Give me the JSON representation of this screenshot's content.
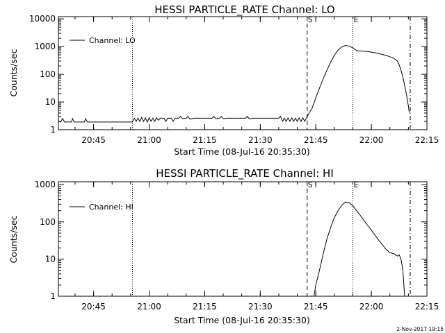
{
  "footer_timestamp": "2-Nov-2017 19:15",
  "chart_data": [
    {
      "type": "line",
      "title": "HESSI PARTICLE_RATE Channel: LO",
      "xlabel": "Start Time (08-Jul-16 20:35:30)",
      "ylabel": "Counts/sec",
      "y_scale": "log",
      "ylim": [
        1,
        12000
      ],
      "xlim": [
        "20:35:30",
        "22:15:00"
      ],
      "x_ticks": [
        "20:45",
        "21:00",
        "21:15",
        "21:30",
        "21:45",
        "22:00",
        "22:15"
      ],
      "y_ticks": [
        "1",
        "10",
        "100",
        "1000",
        "10000"
      ],
      "markers": {
        "start_label": "S",
        "end_label": "E"
      },
      "vlines": {
        "dotted": [
          "20:55:30",
          "21:55:00"
        ],
        "dashed": "21:42:40",
        "dashdot": "22:10:30"
      },
      "legend": {
        "label": "Channel: LO",
        "position": "top-left"
      },
      "series": [
        {
          "name": "Channel: LO",
          "points": [
            [
              "20:35:30",
              2.0
            ],
            [
              "20:36:00",
              1.9
            ],
            [
              "20:36:40",
              2.5
            ],
            [
              "20:37:10",
              1.9
            ],
            [
              "20:39:00",
              1.9
            ],
            [
              "20:39:20",
              2.5
            ],
            [
              "20:39:45",
              1.9
            ],
            [
              "20:42:30",
              1.9
            ],
            [
              "20:42:50",
              2.5
            ],
            [
              "20:43:20",
              1.9
            ],
            [
              "20:55:30",
              1.9
            ],
            [
              "20:56:00",
              2.6
            ],
            [
              "20:56:30",
              2.0
            ],
            [
              "20:57:00",
              2.6
            ],
            [
              "20:57:30",
              2.0
            ],
            [
              "20:58:00",
              2.8
            ],
            [
              "20:58:30",
              2.0
            ],
            [
              "20:59:00",
              2.7
            ],
            [
              "20:59:30",
              1.9
            ],
            [
              "21:00:00",
              2.7
            ],
            [
              "21:00:30",
              2.0
            ],
            [
              "21:01:00",
              2.6
            ],
            [
              "21:01:30",
              2.0
            ],
            [
              "21:02:00",
              2.7
            ],
            [
              "21:02:30",
              2.2
            ],
            [
              "21:03:00",
              2.6
            ],
            [
              "21:04:00",
              2.6
            ],
            [
              "21:04:30",
              2.0
            ],
            [
              "21:05:00",
              2.6
            ],
            [
              "21:06:00",
              2.6
            ],
            [
              "21:06:30",
              2.0
            ],
            [
              "21:07:00",
              2.6
            ],
            [
              "21:08:00",
              2.6
            ],
            [
              "21:08:30",
              3.0
            ],
            [
              "21:09:00",
              2.5
            ],
            [
              "21:10:00",
              2.6
            ],
            [
              "21:10:30",
              3.0
            ],
            [
              "21:11:00",
              2.4
            ],
            [
              "21:12:00",
              2.6
            ],
            [
              "21:13:00",
              2.6
            ],
            [
              "21:14:00",
              2.6
            ],
            [
              "21:15:00",
              2.6
            ],
            [
              "21:16:00",
              2.6
            ],
            [
              "21:17:00",
              2.6
            ],
            [
              "21:17:30",
              3.0
            ],
            [
              "21:18:00",
              2.5
            ],
            [
              "21:19:00",
              2.6
            ],
            [
              "21:19:30",
              3.0
            ],
            [
              "21:20:00",
              2.5
            ],
            [
              "21:21:00",
              2.6
            ],
            [
              "21:22:00",
              2.6
            ],
            [
              "21:23:00",
              2.6
            ],
            [
              "21:24:00",
              2.6
            ],
            [
              "21:25:00",
              2.6
            ],
            [
              "21:26:00",
              2.6
            ],
            [
              "21:26:30",
              3.0
            ],
            [
              "21:27:00",
              2.5
            ],
            [
              "21:28:00",
              2.6
            ],
            [
              "21:29:00",
              2.6
            ],
            [
              "21:30:00",
              2.6
            ],
            [
              "21:31:00",
              2.6
            ],
            [
              "21:32:00",
              2.6
            ],
            [
              "21:33:00",
              2.6
            ],
            [
              "21:34:00",
              2.6
            ],
            [
              "21:35:00",
              2.6
            ],
            [
              "21:35:30",
              3.0
            ],
            [
              "21:36:00",
              2.0
            ],
            [
              "21:36:30",
              2.6
            ],
            [
              "21:37:00",
              2.0
            ],
            [
              "21:37:30",
              2.7
            ],
            [
              "21:38:00",
              2.0
            ],
            [
              "21:38:30",
              2.7
            ],
            [
              "21:39:00",
              2.0
            ],
            [
              "21:39:30",
              2.6
            ],
            [
              "21:40:00",
              2.0
            ],
            [
              "21:40:30",
              2.7
            ],
            [
              "21:41:00",
              2.0
            ],
            [
              "21:41:30",
              2.7
            ],
            [
              "21:42:00",
              2.0
            ],
            [
              "21:42:30",
              2.7
            ],
            [
              "21:42:40",
              2.9
            ],
            [
              "21:43:00",
              3.6
            ],
            [
              "21:44:00",
              6
            ],
            [
              "21:45:00",
              14
            ],
            [
              "21:46:00",
              32
            ],
            [
              "21:47:00",
              70
            ],
            [
              "21:48:00",
              140
            ],
            [
              "21:49:00",
              270
            ],
            [
              "21:50:00",
              480
            ],
            [
              "21:51:00",
              750
            ],
            [
              "21:52:00",
              980
            ],
            [
              "21:53:00",
              1100
            ],
            [
              "21:54:00",
              1050
            ],
            [
              "21:55:00",
              900
            ],
            [
              "21:56:00",
              720
            ],
            [
              "21:57:00",
              690
            ],
            [
              "21:58:00",
              680
            ],
            [
              "21:59:00",
              670
            ],
            [
              "22:00:00",
              630
            ],
            [
              "22:01:00",
              600
            ],
            [
              "22:02:00",
              560
            ],
            [
              "22:03:00",
              520
            ],
            [
              "22:04:00",
              480
            ],
            [
              "22:05:00",
              430
            ],
            [
              "22:06:00",
              380
            ],
            [
              "22:07:00",
              300
            ],
            [
              "22:07:30",
              220
            ],
            [
              "22:08:00",
              140
            ],
            [
              "22:08:30",
              80
            ],
            [
              "22:09:00",
              40
            ],
            [
              "22:09:30",
              18
            ],
            [
              "22:10:00",
              7
            ],
            [
              "22:10:15",
              4
            ]
          ]
        }
      ]
    },
    {
      "type": "line",
      "title": "HESSI PARTICLE_RATE Channel: HI",
      "xlabel": "Start Time (08-Jul-16 20:35:30)",
      "ylabel": "Counts/sec",
      "y_scale": "log",
      "ylim": [
        1,
        1200
      ],
      "xlim": [
        "20:35:30",
        "22:15:00"
      ],
      "x_ticks": [
        "20:45",
        "21:00",
        "21:15",
        "21:30",
        "21:45",
        "22:00",
        "22:15"
      ],
      "y_ticks": [
        "1",
        "10",
        "100",
        "1000"
      ],
      "markers": {
        "start_label": "S",
        "end_label": "E"
      },
      "vlines": {
        "dotted": [
          "20:55:30",
          "21:55:00"
        ],
        "dashed": "21:42:40",
        "dashdot": "22:10:30"
      },
      "legend": {
        "label": "Channel: HI",
        "position": "top-left"
      },
      "series": [
        {
          "name": "Channel: HI",
          "points": [
            [
              "21:44:30",
              1.0
            ],
            [
              "21:45:00",
              2
            ],
            [
              "21:46:00",
              5
            ],
            [
              "21:47:00",
              14
            ],
            [
              "21:48:00",
              35
            ],
            [
              "21:49:00",
              70
            ],
            [
              "21:50:00",
              130
            ],
            [
              "21:51:00",
              200
            ],
            [
              "21:52:00",
              280
            ],
            [
              "21:53:00",
              340
            ],
            [
              "21:54:00",
              330
            ],
            [
              "21:55:00",
              270
            ],
            [
              "21:56:00",
              200
            ],
            [
              "21:57:00",
              150
            ],
            [
              "21:58:00",
              110
            ],
            [
              "21:59:00",
              80
            ],
            [
              "22:00:00",
              60
            ],
            [
              "22:01:00",
              44
            ],
            [
              "22:02:00",
              32
            ],
            [
              "22:03:00",
              24
            ],
            [
              "22:04:00",
              18
            ],
            [
              "22:05:00",
              15
            ],
            [
              "22:06:00",
              14
            ],
            [
              "22:07:00",
              12
            ],
            [
              "22:07:30",
              13
            ],
            [
              "22:08:00",
              10
            ],
            [
              "22:08:30",
              5
            ],
            [
              "22:09:00",
              1.0
            ]
          ]
        }
      ]
    }
  ]
}
